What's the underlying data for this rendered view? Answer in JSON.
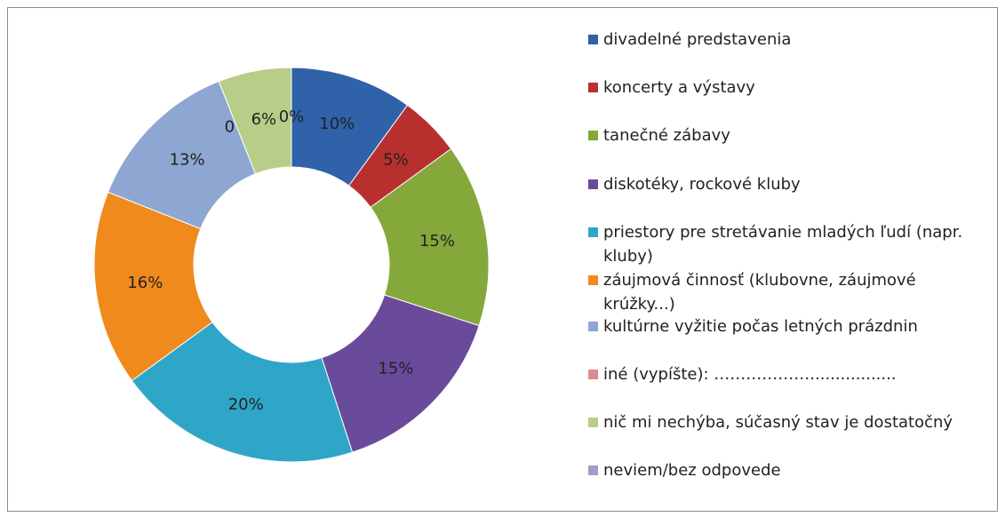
{
  "chart_data": {
    "type": "donut",
    "categories": [
      "divadelné predstavenia",
      "koncerty a výstavy",
      "tanečné zábavy",
      "diskotéky, rockové kluby",
      "priestory pre stretávanie mladých ľudí (napr. kluby)",
      "záujmová činnosť (klubovne, záujmové krúžky...)",
      "kultúrne vyžitie počas letných prázdnin",
      "iné (vypíšte): ……………….................",
      "nič mi nechýba, súčasný stav je dostatočný",
      "neviem/bez odpovede"
    ],
    "values": [
      10,
      5,
      15,
      15,
      20,
      16,
      13,
      0,
      6,
      0
    ],
    "value_labels": [
      "10%",
      "5%",
      "15%",
      "15%",
      "20%",
      "16%",
      "13%",
      "0%",
      "6%",
      "0%"
    ],
    "colors": [
      "#2f62a9",
      "#b8302e",
      "#84a83a",
      "#6a4a9b",
      "#2fa6c8",
      "#f08a1d",
      "#8ea6d2",
      "#d98d8c",
      "#b7cd88",
      "#a69ac7"
    ],
    "legend": "right"
  }
}
